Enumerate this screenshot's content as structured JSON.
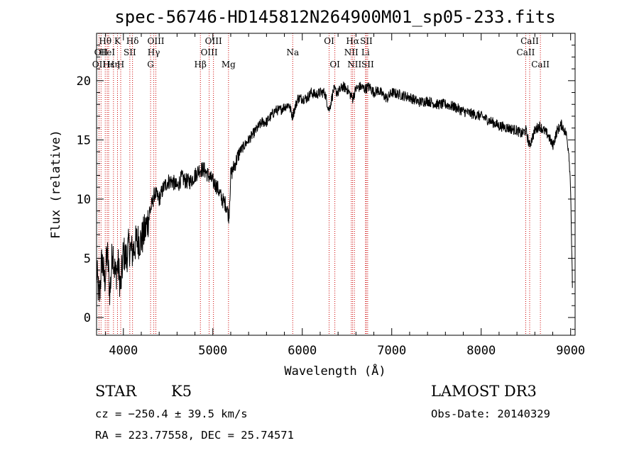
{
  "chart_data": {
    "type": "line",
    "title": "spec-56746-HD145812N264900M01_sp05-233.fits",
    "xlabel": "Wavelength (Å)",
    "ylabel": "Flux (relative)",
    "xlim": [
      3700,
      9050
    ],
    "ylim": [
      -1.5,
      24
    ],
    "xticks": [
      4000,
      5000,
      6000,
      7000,
      8000,
      9000
    ],
    "yticks": [
      0,
      5,
      10,
      15,
      20
    ],
    "grid": false,
    "series": [
      {
        "color": "#000000",
        "x": [
          3700,
          3730,
          3760,
          3790,
          3820,
          3850,
          3880,
          3910,
          3940,
          3970,
          4000,
          4030,
          4060,
          4100,
          4150,
          4200,
          4250,
          4300,
          4350,
          4400,
          4450,
          4500,
          4550,
          4600,
          4650,
          4700,
          4750,
          4800,
          4850,
          4900,
          4950,
          5000,
          5050,
          5100,
          5150,
          5180,
          5200,
          5250,
          5300,
          5350,
          5400,
          5450,
          5500,
          5550,
          5600,
          5650,
          5700,
          5750,
          5800,
          5850,
          5890,
          5950,
          6000,
          6050,
          6100,
          6150,
          6200,
          6250,
          6300,
          6350,
          6400,
          6450,
          6500,
          6563,
          6600,
          6650,
          6700,
          6750,
          6800,
          6850,
          6900,
          6950,
          7000,
          7100,
          7200,
          7300,
          7400,
          7500,
          7600,
          7700,
          7800,
          7900,
          8000,
          8100,
          8200,
          8300,
          8400,
          8450,
          8500,
          8540,
          8600,
          8650,
          8700,
          8750,
          8800,
          8850,
          8900,
          8950,
          8980,
          9000,
          9020
        ],
        "y": [
          4.0,
          1.5,
          5.0,
          3.0,
          5.5,
          2.0,
          6.0,
          3.5,
          4.5,
          2.5,
          5.5,
          5.0,
          6.0,
          5.5,
          6.5,
          6.5,
          7.5,
          9.0,
          10.5,
          10.0,
          11.0,
          11.5,
          11.5,
          11.0,
          11.8,
          11.5,
          11.5,
          12.0,
          12.5,
          12.5,
          12.0,
          11.5,
          11.0,
          10.0,
          9.5,
          8.5,
          12.0,
          13.0,
          14.0,
          14.5,
          15.0,
          15.5,
          16.0,
          16.5,
          16.5,
          17.0,
          17.5,
          17.5,
          17.8,
          18.0,
          17.0,
          18.5,
          18.5,
          18.5,
          19.0,
          18.8,
          19.0,
          19.0,
          17.5,
          19.2,
          19.0,
          19.5,
          19.3,
          18.5,
          19.3,
          19.5,
          19.3,
          19.5,
          19.0,
          19.2,
          18.8,
          18.5,
          19.0,
          18.8,
          18.6,
          18.2,
          18.3,
          18.0,
          18.0,
          17.8,
          17.4,
          17.2,
          17.0,
          16.6,
          16.2,
          16.0,
          15.8,
          15.5,
          15.8,
          14.5,
          15.8,
          16.2,
          15.8,
          15.4,
          14.5,
          15.8,
          16.3,
          15.5,
          14.0,
          11.0,
          2.5
        ]
      }
    ],
    "spectral_lines": [
      {
        "wavelength": 3727,
        "label": "OII",
        "row": 2
      },
      {
        "wavelength": 3750,
        "label": "OII",
        "row": 1
      },
      {
        "wavelength": 3797,
        "label": "Hθ",
        "row": 0
      },
      {
        "wavelength": 3819,
        "label": "HeI",
        "row": 1
      },
      {
        "wavelength": 3835,
        "label": "Hε",
        "row": 2
      },
      {
        "wavelength": 3889,
        "label": "Hη",
        "row": 2
      },
      {
        "wavelength": 3934,
        "label": "K",
        "row": 0
      },
      {
        "wavelength": 3970,
        "label": "H",
        "row": 2
      },
      {
        "wavelength": 4072,
        "label": "SII",
        "row": 1
      },
      {
        "wavelength": 4102,
        "label": "Hδ",
        "row": 0
      },
      {
        "wavelength": 4304,
        "label": "G",
        "row": 2
      },
      {
        "wavelength": 4340,
        "label": "Hγ",
        "row": 1
      },
      {
        "wavelength": 4363,
        "label": "OIII",
        "row": 0
      },
      {
        "wavelength": 4861,
        "label": "Hβ",
        "row": 2
      },
      {
        "wavelength": 4959,
        "label": "OIII",
        "row": 1
      },
      {
        "wavelength": 5007,
        "label": "OIII",
        "row": 0
      },
      {
        "wavelength": 5175,
        "label": "Mg",
        "row": 2
      },
      {
        "wavelength": 5893,
        "label": "Na",
        "row": 1
      },
      {
        "wavelength": 6300,
        "label": "OI",
        "row": 0
      },
      {
        "wavelength": 6364,
        "label": "OI",
        "row": 2
      },
      {
        "wavelength": 6548,
        "label": "NII",
        "row": 1
      },
      {
        "wavelength": 6563,
        "label": "Hα",
        "row": 0
      },
      {
        "wavelength": 6583,
        "label": "NII",
        "row": 2
      },
      {
        "wavelength": 6707,
        "label": "Li",
        "row": 1
      },
      {
        "wavelength": 6716,
        "label": "SII",
        "row": 0
      },
      {
        "wavelength": 6731,
        "label": "SII",
        "row": 2
      },
      {
        "wavelength": 8498,
        "label": "CaII",
        "row": 1
      },
      {
        "wavelength": 8542,
        "label": "CaII",
        "row": 0
      },
      {
        "wavelength": 8662,
        "label": "CaII",
        "row": 2
      }
    ],
    "line_marker_color": "#cc0000"
  },
  "info": {
    "object_class": "STAR",
    "subclass": "K5",
    "survey": "LAMOST DR3",
    "cz": "cz = −250.4 ± 39.5 km/s",
    "obs_date": "Obs-Date: 20140329",
    "coords": "RA = 223.77558, DEC =  25.74571"
  }
}
